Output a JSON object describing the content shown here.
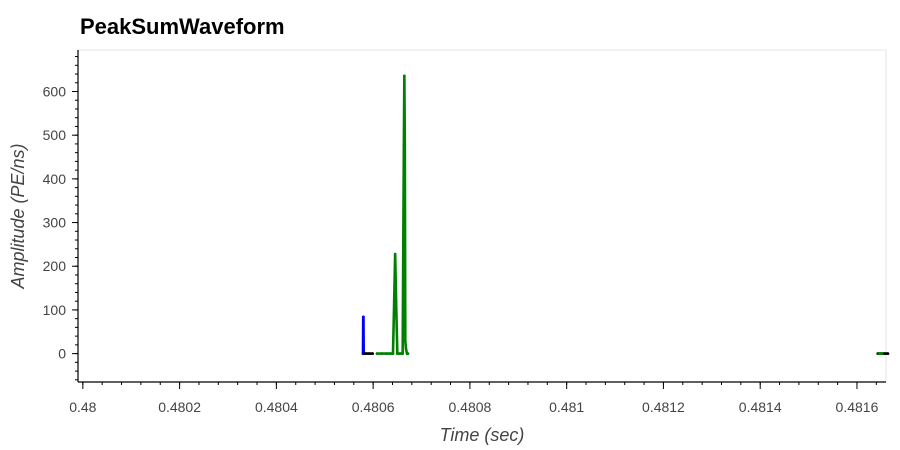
{
  "chart_data": {
    "type": "line",
    "title": "PeakSumWaveform",
    "xlabel": "Time (sec)",
    "ylabel": "Amplitude (PE/ns)",
    "xlim": [
      0.47999,
      0.48166
    ],
    "ylim": [
      -65,
      695
    ],
    "x_ticks": [
      0.48,
      0.4802,
      0.4804,
      0.4806,
      0.4808,
      0.481,
      0.4812,
      0.4814,
      0.4816
    ],
    "x_tick_labels": [
      "0.48",
      "0.4802",
      "0.4804",
      "0.4806",
      "0.4808",
      "0.481",
      "0.4812",
      "0.4814",
      "0.4816"
    ],
    "y_ticks": [
      0,
      100,
      200,
      300,
      400,
      500,
      600
    ],
    "y_tick_labels": [
      "0",
      "100",
      "200",
      "300",
      "400",
      "500",
      "600"
    ],
    "grid": false,
    "series": [
      {
        "color": "#0000ff",
        "x": [
          0.480579,
          0.4805795,
          0.48058,
          0.4805805
        ],
        "y": [
          0,
          84,
          84,
          0
        ]
      },
      {
        "color": "#000000",
        "x": [
          0.4805805,
          0.480586,
          0.480592,
          0.480599
        ],
        "y": [
          0,
          0,
          0,
          0
        ]
      },
      {
        "color": "#008000",
        "x": [
          0.480608,
          0.480618,
          0.480628,
          0.480636,
          0.480641,
          0.4806435,
          0.4806455,
          0.4806475,
          0.48065,
          0.480654,
          0.480658,
          0.480661,
          0.4806635,
          0.4806645,
          0.4806655,
          0.4806665,
          0.480668,
          0.48067,
          0.480672
        ],
        "y": [
          0,
          0,
          0,
          0,
          0,
          120,
          228,
          120,
          0,
          0,
          0,
          0,
          478,
          636,
          478,
          28,
          10,
          0,
          0
        ]
      },
      {
        "color": "#000000",
        "x": [
          0.481643,
          0.48165,
          0.481657,
          0.481664
        ],
        "y": [
          0,
          0,
          0,
          0
        ]
      },
      {
        "color": "#008000",
        "x": [
          0.481645,
          0.481652
        ],
        "y": [
          0,
          0
        ]
      }
    ]
  }
}
